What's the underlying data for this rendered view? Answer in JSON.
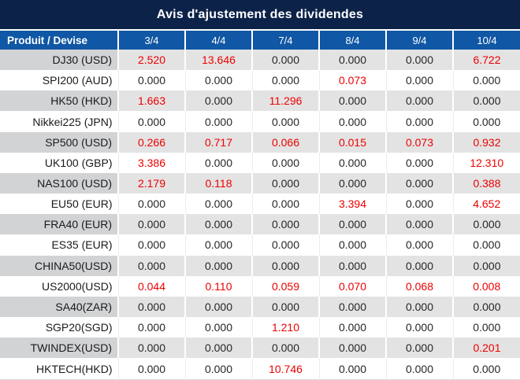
{
  "title": "Avis d'ajustement des dividendes",
  "table": {
    "product_header": "Produit / Devise",
    "date_headers": [
      "3/4",
      "4/4",
      "7/4",
      "8/4",
      "9/4",
      "10/4"
    ],
    "rows": [
      {
        "product": "DJ30 (USD)",
        "values": [
          "2.520",
          "13.646",
          "0.000",
          "0.000",
          "0.000",
          "6.722"
        ]
      },
      {
        "product": "SPI200 (AUD)",
        "values": [
          "0.000",
          "0.000",
          "0.000",
          "0.073",
          "0.000",
          "0.000"
        ]
      },
      {
        "product": "HK50 (HKD)",
        "values": [
          "1.663",
          "0.000",
          "11.296",
          "0.000",
          "0.000",
          "0.000"
        ]
      },
      {
        "product": "Nikkei225 (JPN)",
        "values": [
          "0.000",
          "0.000",
          "0.000",
          "0.000",
          "0.000",
          "0.000"
        ]
      },
      {
        "product": "SP500 (USD)",
        "values": [
          "0.266",
          "0.717",
          "0.066",
          "0.015",
          "0.073",
          "0.932"
        ]
      },
      {
        "product": "UK100 (GBP)",
        "values": [
          "3.386",
          "0.000",
          "0.000",
          "0.000",
          "0.000",
          "12.310"
        ]
      },
      {
        "product": "NAS100 (USD)",
        "values": [
          "2.179",
          "0.118",
          "0.000",
          "0.000",
          "0.000",
          "0.388"
        ]
      },
      {
        "product": "EU50 (EUR)",
        "values": [
          "0.000",
          "0.000",
          "0.000",
          "3.394",
          "0.000",
          "4.652"
        ]
      },
      {
        "product": "FRA40 (EUR)",
        "values": [
          "0.000",
          "0.000",
          "0.000",
          "0.000",
          "0.000",
          "0.000"
        ]
      },
      {
        "product": "ES35 (EUR)",
        "values": [
          "0.000",
          "0.000",
          "0.000",
          "0.000",
          "0.000",
          "0.000"
        ]
      },
      {
        "product": "CHINA50(USD)",
        "values": [
          "0.000",
          "0.000",
          "0.000",
          "0.000",
          "0.000",
          "0.000"
        ]
      },
      {
        "product": "US2000(USD)",
        "values": [
          "0.044",
          "0.110",
          "0.059",
          "0.070",
          "0.068",
          "0.008"
        ]
      },
      {
        "product": "SA40(ZAR)",
        "values": [
          "0.000",
          "0.000",
          "0.000",
          "0.000",
          "0.000",
          "0.000"
        ]
      },
      {
        "product": "SGP20(SGD)",
        "values": [
          "0.000",
          "0.000",
          "1.210",
          "0.000",
          "0.000",
          "0.000"
        ]
      },
      {
        "product": "TWINDEX(USD)",
        "values": [
          "0.000",
          "0.000",
          "0.000",
          "0.000",
          "0.000",
          "0.201"
        ]
      },
      {
        "product": "HKTECH(HKD)",
        "values": [
          "0.000",
          "0.000",
          "10.746",
          "0.000",
          "0.000",
          "0.000"
        ]
      }
    ]
  },
  "colors": {
    "title_bg": "#0c2248",
    "header_bg": "#1057a5",
    "highlight_red": "#ee0000",
    "row_gray_product": "#d2d3d5",
    "row_gray_value": "#e3e3e3",
    "text_black": "#262626"
  }
}
